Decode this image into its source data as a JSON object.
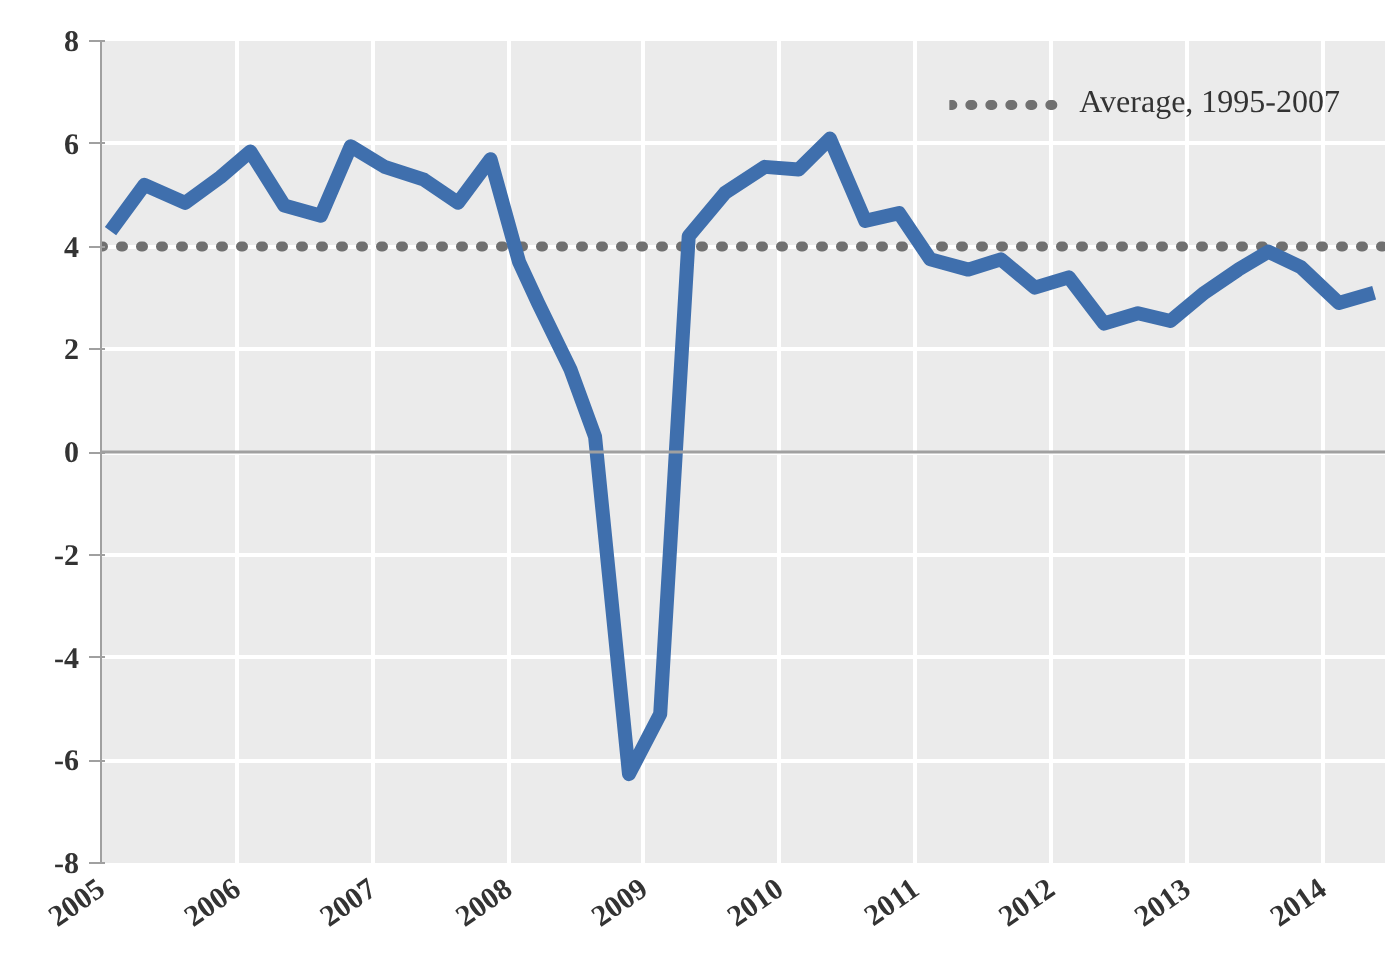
{
  "chart_data": {
    "type": "line",
    "x": [
      2005.07,
      2005.32,
      2005.62,
      2005.88,
      2006.1,
      2006.35,
      2006.62,
      2006.84,
      2007.09,
      2007.38,
      2007.63,
      2007.87,
      2008.08,
      2008.22,
      2008.46,
      2008.64,
      2008.89,
      2009.12,
      2009.33,
      2009.6,
      2009.89,
      2010.14,
      2010.37,
      2010.63,
      2010.88,
      2011.11,
      2011.39,
      2011.63,
      2011.88,
      2012.13,
      2012.39,
      2012.64,
      2012.88,
      2013.13,
      2013.38,
      2013.6,
      2013.84,
      2014.12,
      2014.38
    ],
    "series": [
      {
        "color": "#3f6fad",
        "values": [
          4.3,
          5.2,
          4.85,
          5.35,
          5.85,
          4.8,
          4.6,
          5.95,
          5.55,
          5.3,
          4.85,
          5.7,
          3.7,
          2.9,
          1.6,
          0.3,
          -6.27,
          -5.1,
          4.2,
          5.05,
          5.55,
          5.5,
          6.1,
          4.5,
          4.65,
          3.75,
          3.55,
          3.75,
          3.2,
          3.4,
          2.5,
          2.7,
          2.55,
          3.1,
          3.55,
          3.9,
          3.6,
          2.9,
          3.1
        ]
      }
    ],
    "xlim": [
      2005,
      2014.46
    ],
    "ylim": [
      -8,
      8
    ],
    "xticks": [
      2005,
      2006,
      2007,
      2008,
      2009,
      2010,
      2011,
      2012,
      2013,
      2014
    ],
    "yticks": [
      -8,
      -6,
      -4,
      -2,
      0,
      2,
      4,
      6,
      8
    ],
    "ref_lines": [
      {
        "axis": "y",
        "value": 4,
        "label": "Average, 1995-2007",
        "color": "#707070",
        "line_style": "dotted"
      },
      {
        "axis": "y",
        "value": 0,
        "label": null,
        "color": "#a0a0a0",
        "line_style": "solid"
      }
    ],
    "grid": true,
    "marker": "none",
    "line_style": "solid"
  }
}
